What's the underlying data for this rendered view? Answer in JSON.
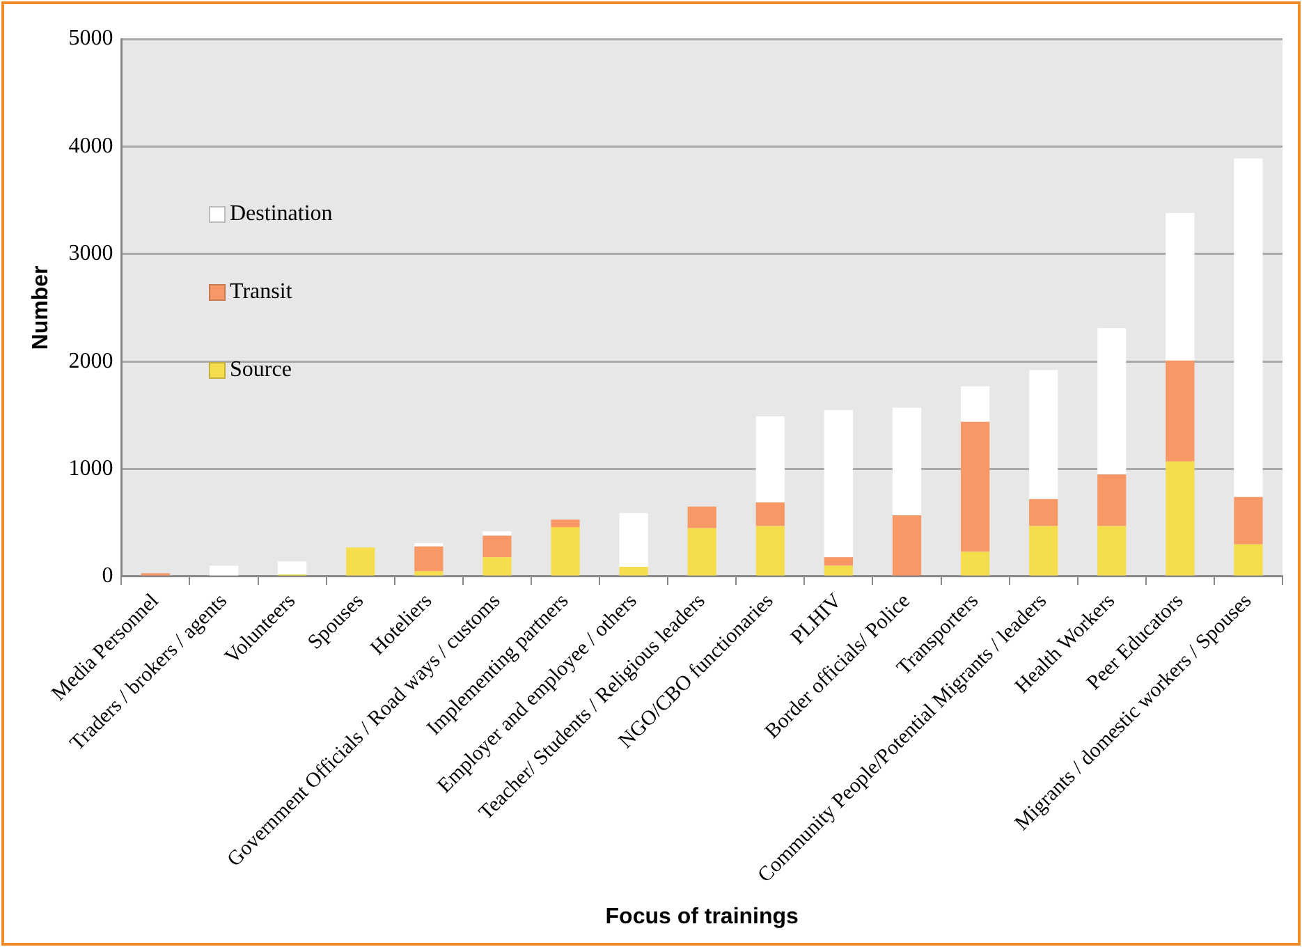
{
  "chart_data": {
    "type": "bar",
    "stacked": true,
    "xlabel": "Focus of trainings",
    "ylabel": "Number",
    "categories": [
      "Media Personnel",
      "Traders / brokers / agents",
      "Volunteers",
      "Spouses",
      "Hoteliers",
      "Government Officials / Road ways / customs",
      "Implementing partners",
      "Employer and employee / others",
      "Teacher/ Students / Religious leaders",
      "NGO/CBO functionaries",
      "PLHIV",
      "Border officials/ Police",
      "Transporters",
      "Community People/Potential Migrants / leaders",
      "Health Workers",
      "Peer Educators",
      "Migrants / domestic workers / Spouses"
    ],
    "series": [
      {
        "name": "Source",
        "color": "#f6dd4c",
        "values": [
          0,
          0,
          20,
          270,
          50,
          180,
          460,
          90,
          450,
          470,
          100,
          0,
          230,
          470,
          470,
          1070,
          300
        ]
      },
      {
        "name": "Transit",
        "color": "#f79866",
        "values": [
          30,
          0,
          0,
          0,
          230,
          200,
          70,
          0,
          200,
          220,
          80,
          570,
          1210,
          250,
          480,
          940,
          440
        ]
      },
      {
        "name": "Destination",
        "color": "#ffffff",
        "values": [
          0,
          100,
          120,
          0,
          30,
          40,
          0,
          500,
          0,
          800,
          1370,
          1000,
          330,
          1200,
          1360,
          1370,
          3150
        ]
      }
    ],
    "ylim": [
      0,
      5000
    ],
    "yticks": [
      0,
      1000,
      2000,
      3000,
      4000,
      5000
    ],
    "grid": "y",
    "legend": "top left"
  }
}
